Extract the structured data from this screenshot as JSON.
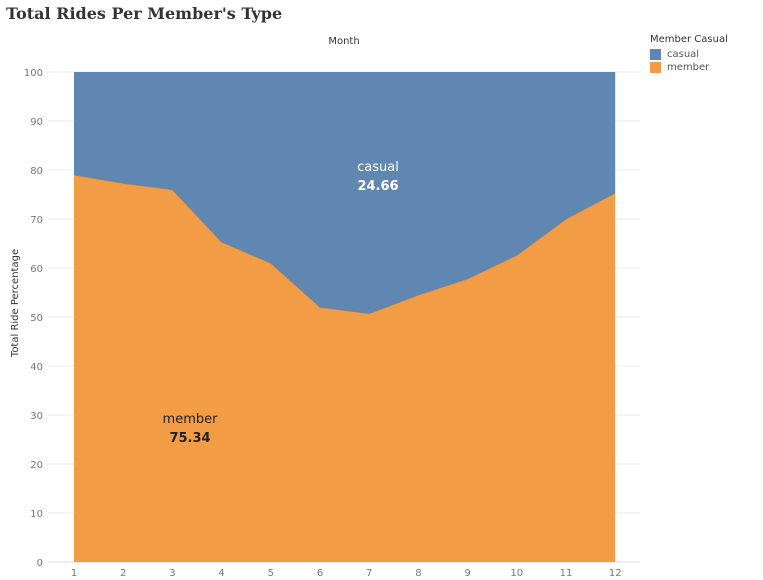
{
  "title": "Total Rides Per Member's Type",
  "chart_data": {
    "type": "area",
    "stacked": true,
    "x_title": "Month",
    "ylabel": "Total Ride Percentage",
    "x": [
      1,
      2,
      3,
      4,
      5,
      6,
      7,
      8,
      9,
      10,
      11,
      12
    ],
    "x_ticks": [
      "1",
      "2",
      "3",
      "4",
      "5",
      "6",
      "7",
      "8",
      "9",
      "10",
      "11",
      "12"
    ],
    "ylim": [
      0,
      100
    ],
    "y_ticks": [
      "0",
      "10",
      "20",
      "30",
      "40",
      "50",
      "60",
      "70",
      "80",
      "90",
      "100"
    ],
    "series": [
      {
        "name": "member",
        "values": [
          79.0,
          77.3,
          76.0,
          65.3,
          61.0,
          52.0,
          50.7,
          54.5,
          57.8,
          62.6,
          70.0,
          75.3
        ],
        "color": "#f29d45",
        "summary_label": "member",
        "summary_value": "75.34"
      },
      {
        "name": "casual",
        "values": [
          21.0,
          22.7,
          24.0,
          34.7,
          39.0,
          48.0,
          49.3,
          45.5,
          42.2,
          37.4,
          30.0,
          24.7
        ],
        "color": "#5f87b1",
        "summary_label": "casual",
        "summary_value": "24.66"
      }
    ],
    "grid": true,
    "legend": {
      "title": "Member Casual",
      "placement": "top-right",
      "entries": [
        "casual",
        "member"
      ]
    }
  }
}
